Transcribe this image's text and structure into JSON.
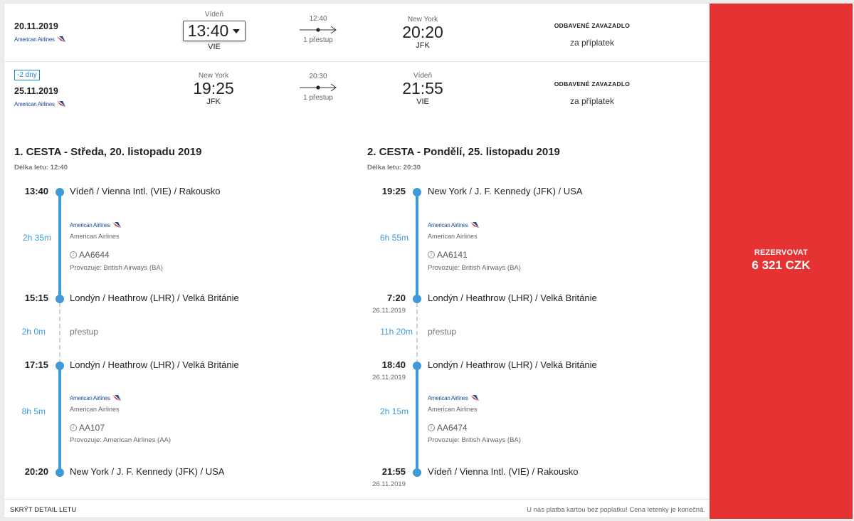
{
  "outbound": {
    "date": "20.11.2019",
    "airline": "American Airlines",
    "dep_city": "Vídeň",
    "dep_time": "13:40",
    "dep_code": "VIE",
    "duration": "12:40",
    "stops": "1 přestup",
    "arr_city": "New York",
    "arr_time": "20:20",
    "arr_code": "JFK",
    "baggage_title": "ODBAVENÉ ZAVAZADLO",
    "baggage_value": "za příplatek"
  },
  "inbound": {
    "diff": "-2 dny",
    "date": "25.11.2019",
    "airline": "American Airlines",
    "dep_city": "New York",
    "dep_time": "19:25",
    "dep_code": "JFK",
    "duration": "20:30",
    "stops": "1 přestup",
    "arr_city": "Vídeň",
    "arr_time": "21:55",
    "arr_code": "VIE",
    "baggage_title": "ODBAVENÉ ZAVAZADLO",
    "baggage_value": "za příplatek"
  },
  "book": {
    "label": "REZERVOVAT",
    "price": "6 321 CZK"
  },
  "journey1": {
    "title": "1. CESTA - Středa, 20. listopadu 2019",
    "flight_len": "Délka letu: 12:40",
    "stops": [
      {
        "time": "13:40",
        "date": "",
        "place": "Vídeň / Vienna Intl. (VIE) / Rakousko"
      },
      {
        "time": "15:15",
        "date": "",
        "place": "Londýn / Heathrow (LHR) / Velká Británie"
      },
      {
        "time": "17:15",
        "date": "",
        "place": "Londýn / Heathrow (LHR) / Velká Británie"
      },
      {
        "time": "20:20",
        "date": "",
        "place": "New York / J. F. Kennedy (JFK) / USA"
      }
    ],
    "legs": [
      {
        "duration": "2h 35m",
        "logo": "American Airlines",
        "carrier": "American Airlines",
        "flight": "AA6644",
        "operated": "Provozuje: British Airways (BA)"
      },
      {
        "duration": "8h 5m",
        "logo": "American Airlines",
        "carrier": "American Airlines",
        "flight": "AA107",
        "operated": "Provozuje: American Airlines (AA)"
      }
    ],
    "transfer": {
      "duration": "2h 0m",
      "label": "přestup"
    }
  },
  "journey2": {
    "title": "2. CESTA - Pondělí, 25. listopadu 2019",
    "flight_len": "Délka letu: 20:30",
    "stops": [
      {
        "time": "19:25",
        "date": "",
        "place": "New York / J. F. Kennedy (JFK) / USA"
      },
      {
        "time": "7:20",
        "date": "26.11.2019",
        "place": "Londýn / Heathrow (LHR) / Velká Británie"
      },
      {
        "time": "18:40",
        "date": "26.11.2019",
        "place": "Londýn / Heathrow (LHR) / Velká Británie"
      },
      {
        "time": "21:55",
        "date": "26.11.2019",
        "place": "Vídeň / Vienna Intl. (VIE) / Rakousko"
      }
    ],
    "legs": [
      {
        "duration": "6h 55m",
        "logo": "American Airlines",
        "carrier": "American Airlines",
        "flight": "AA6141",
        "operated": "Provozuje: British Airways (BA)"
      },
      {
        "duration": "2h 15m",
        "logo": "American Airlines",
        "carrier": "American Airlines",
        "flight": "AA6474",
        "operated": "Provozuje: British Airways (BA)"
      }
    ],
    "transfer": {
      "duration": "11h 20m",
      "label": "přestup"
    }
  },
  "footer": {
    "hide": "SKRÝT DETAIL LETU",
    "note": "U nás platba kartou bez poplatku! Cena letenky je konečná."
  },
  "colors": {
    "accent": "#3e9ad8",
    "book": "#e53232"
  }
}
